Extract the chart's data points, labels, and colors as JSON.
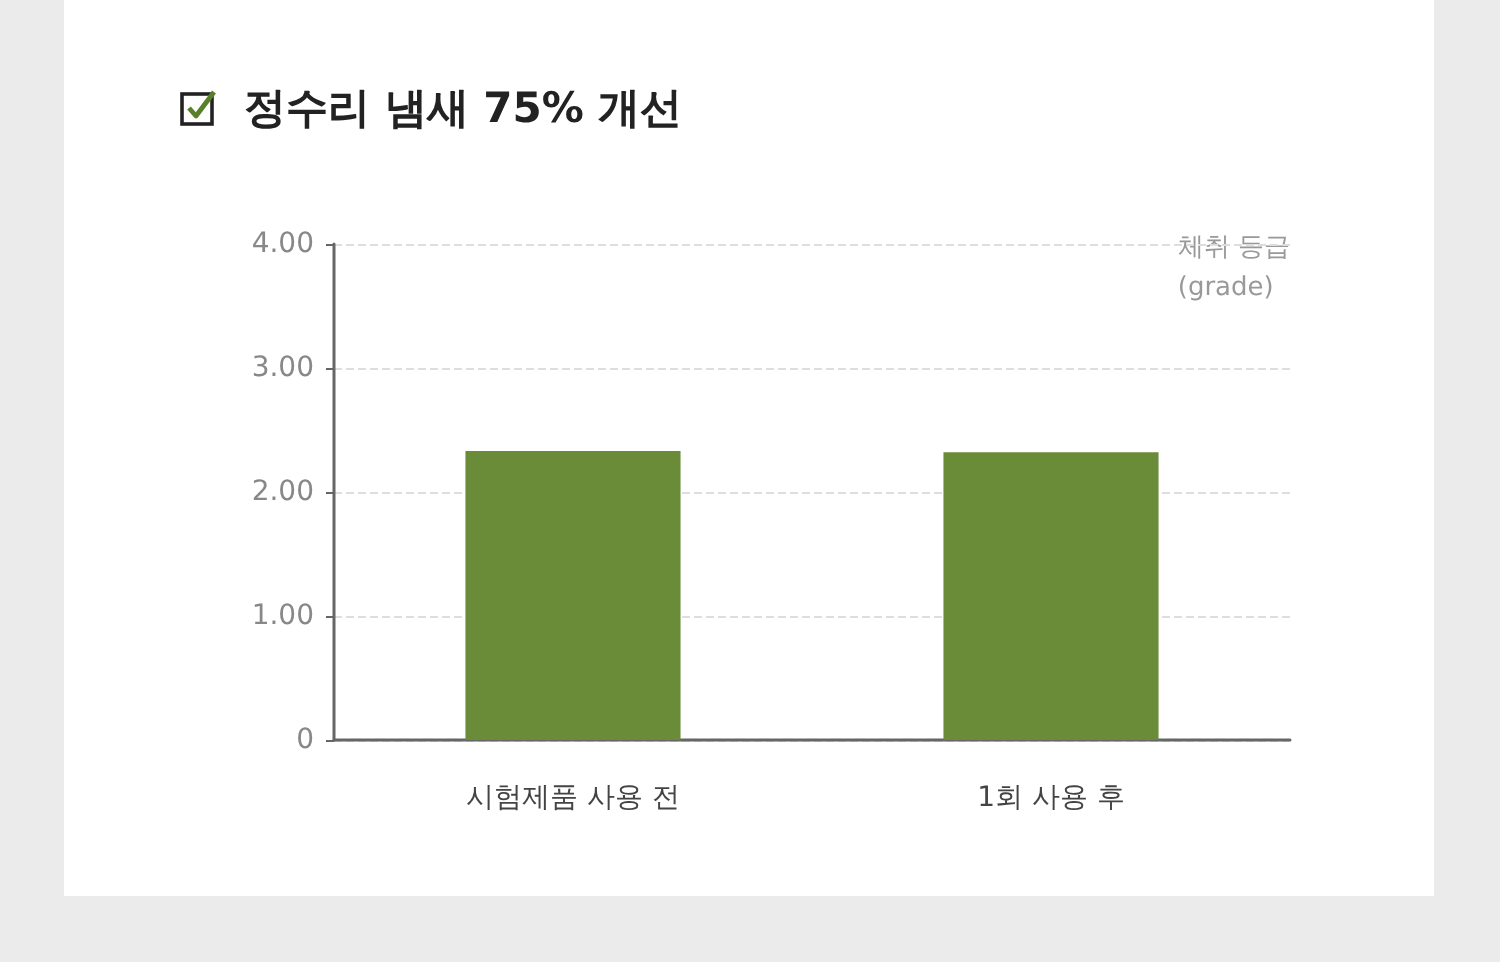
{
  "chart_data": {
    "type": "bar",
    "title": "정수리 냄새 75% 개선",
    "ylabel": "체취 등급\n(grade)",
    "categories": [
      "시험제품 사용 전",
      "1회 사용 후"
    ],
    "values": [
      2.33,
      2.32
    ],
    "color": "#6a8b38",
    "ylim": [
      0,
      4
    ],
    "yticks": [
      0,
      {
        "value": 1,
        "label": "1.00"
      },
      {
        "value": 2,
        "label": "2.00"
      },
      {
        "value": 3,
        "label": "3.00"
      },
      {
        "value": 4,
        "label": "4.00"
      }
    ],
    "grid": "y"
  }
}
